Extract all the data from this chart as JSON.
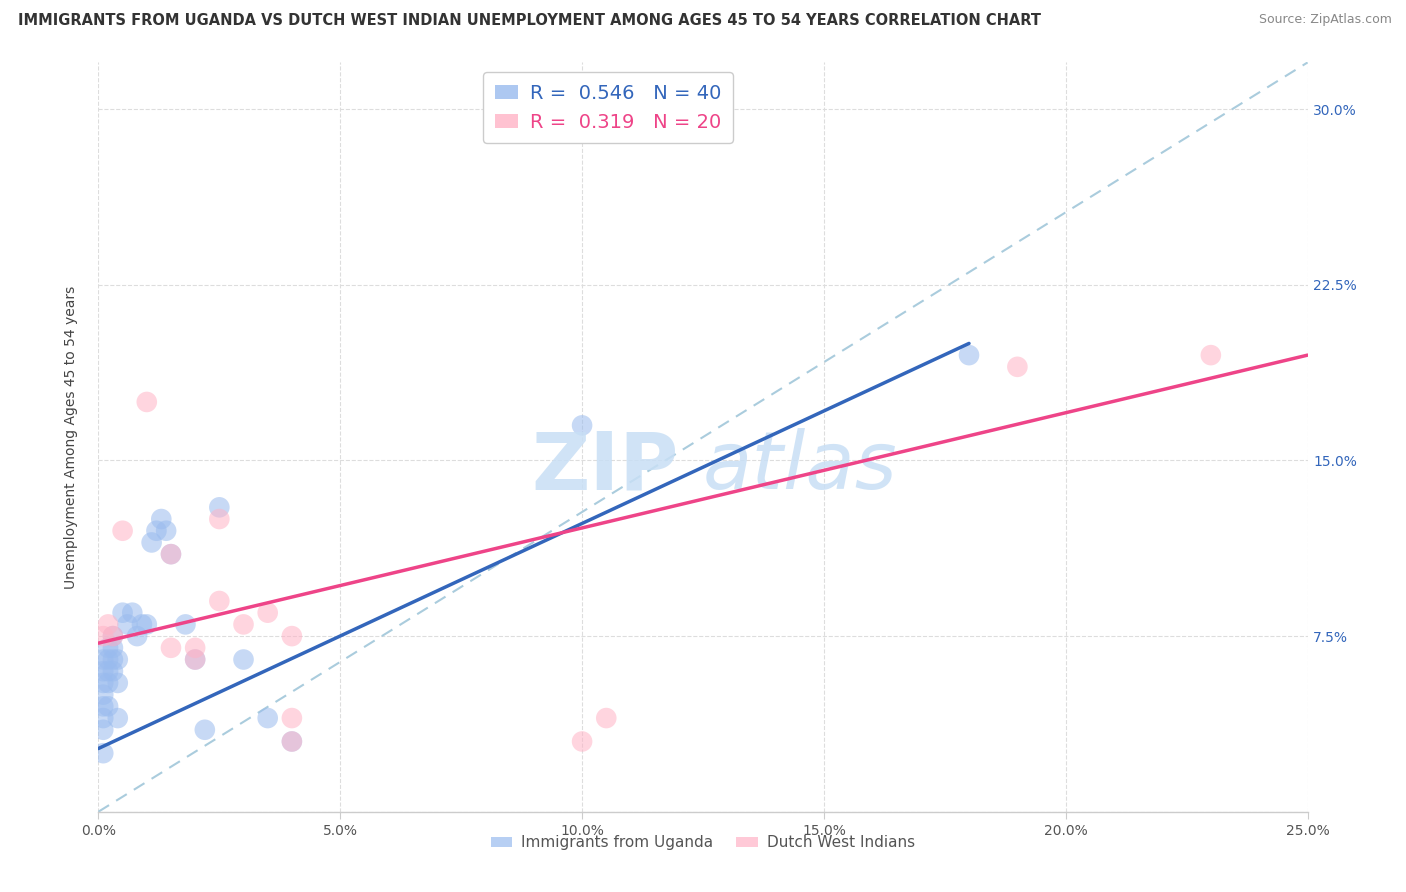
{
  "title": "IMMIGRANTS FROM UGANDA VS DUTCH WEST INDIAN UNEMPLOYMENT AMONG AGES 45 TO 54 YEARS CORRELATION CHART",
  "source": "Source: ZipAtlas.com",
  "ylabel": "Unemployment Among Ages 45 to 54 years",
  "x_range": [
    0,
    0.25
  ],
  "y_range": [
    0,
    0.32
  ],
  "blue_R": 0.546,
  "blue_N": 40,
  "pink_R": 0.319,
  "pink_N": 20,
  "blue_color": "#99BBEE",
  "pink_color": "#FFB3C6",
  "trendline_blue_color": "#3366BB",
  "trendline_pink_color": "#EE4488",
  "dashed_line_color": "#AACCDD",
  "legend_label_blue": "Immigrants from Uganda",
  "legend_label_pink": "Dutch West Indians",
  "blue_x": [
    0.001,
    0.001,
    0.001,
    0.001,
    0.001,
    0.001,
    0.001,
    0.001,
    0.002,
    0.002,
    0.002,
    0.002,
    0.002,
    0.003,
    0.003,
    0.003,
    0.003,
    0.004,
    0.004,
    0.004,
    0.005,
    0.006,
    0.007,
    0.008,
    0.009,
    0.01,
    0.011,
    0.012,
    0.013,
    0.014,
    0.015,
    0.018,
    0.02,
    0.022,
    0.025,
    0.03,
    0.035,
    0.04,
    0.1,
    0.18
  ],
  "blue_y": [
    0.065,
    0.06,
    0.055,
    0.05,
    0.045,
    0.04,
    0.035,
    0.025,
    0.07,
    0.065,
    0.06,
    0.055,
    0.045,
    0.075,
    0.07,
    0.065,
    0.06,
    0.065,
    0.055,
    0.04,
    0.085,
    0.08,
    0.085,
    0.075,
    0.08,
    0.08,
    0.115,
    0.12,
    0.125,
    0.12,
    0.11,
    0.08,
    0.065,
    0.035,
    0.13,
    0.065,
    0.04,
    0.03,
    0.165,
    0.195
  ],
  "pink_x": [
    0.001,
    0.002,
    0.003,
    0.005,
    0.01,
    0.015,
    0.015,
    0.02,
    0.02,
    0.025,
    0.025,
    0.03,
    0.035,
    0.04,
    0.04,
    0.1,
    0.105,
    0.19,
    0.23,
    0.04
  ],
  "pink_y": [
    0.075,
    0.08,
    0.075,
    0.12,
    0.175,
    0.11,
    0.07,
    0.07,
    0.065,
    0.09,
    0.125,
    0.08,
    0.085,
    0.03,
    0.04,
    0.03,
    0.04,
    0.19,
    0.195,
    0.075
  ],
  "background_color": "#FFFFFF",
  "grid_color": "#DDDDDD",
  "trendline_blue_start_x": 0.0,
  "trendline_blue_start_y": 0.027,
  "trendline_blue_end_x": 0.18,
  "trendline_blue_end_y": 0.2,
  "trendline_pink_start_x": 0.0,
  "trendline_pink_start_y": 0.072,
  "trendline_pink_end_x": 0.25,
  "trendline_pink_end_y": 0.195
}
